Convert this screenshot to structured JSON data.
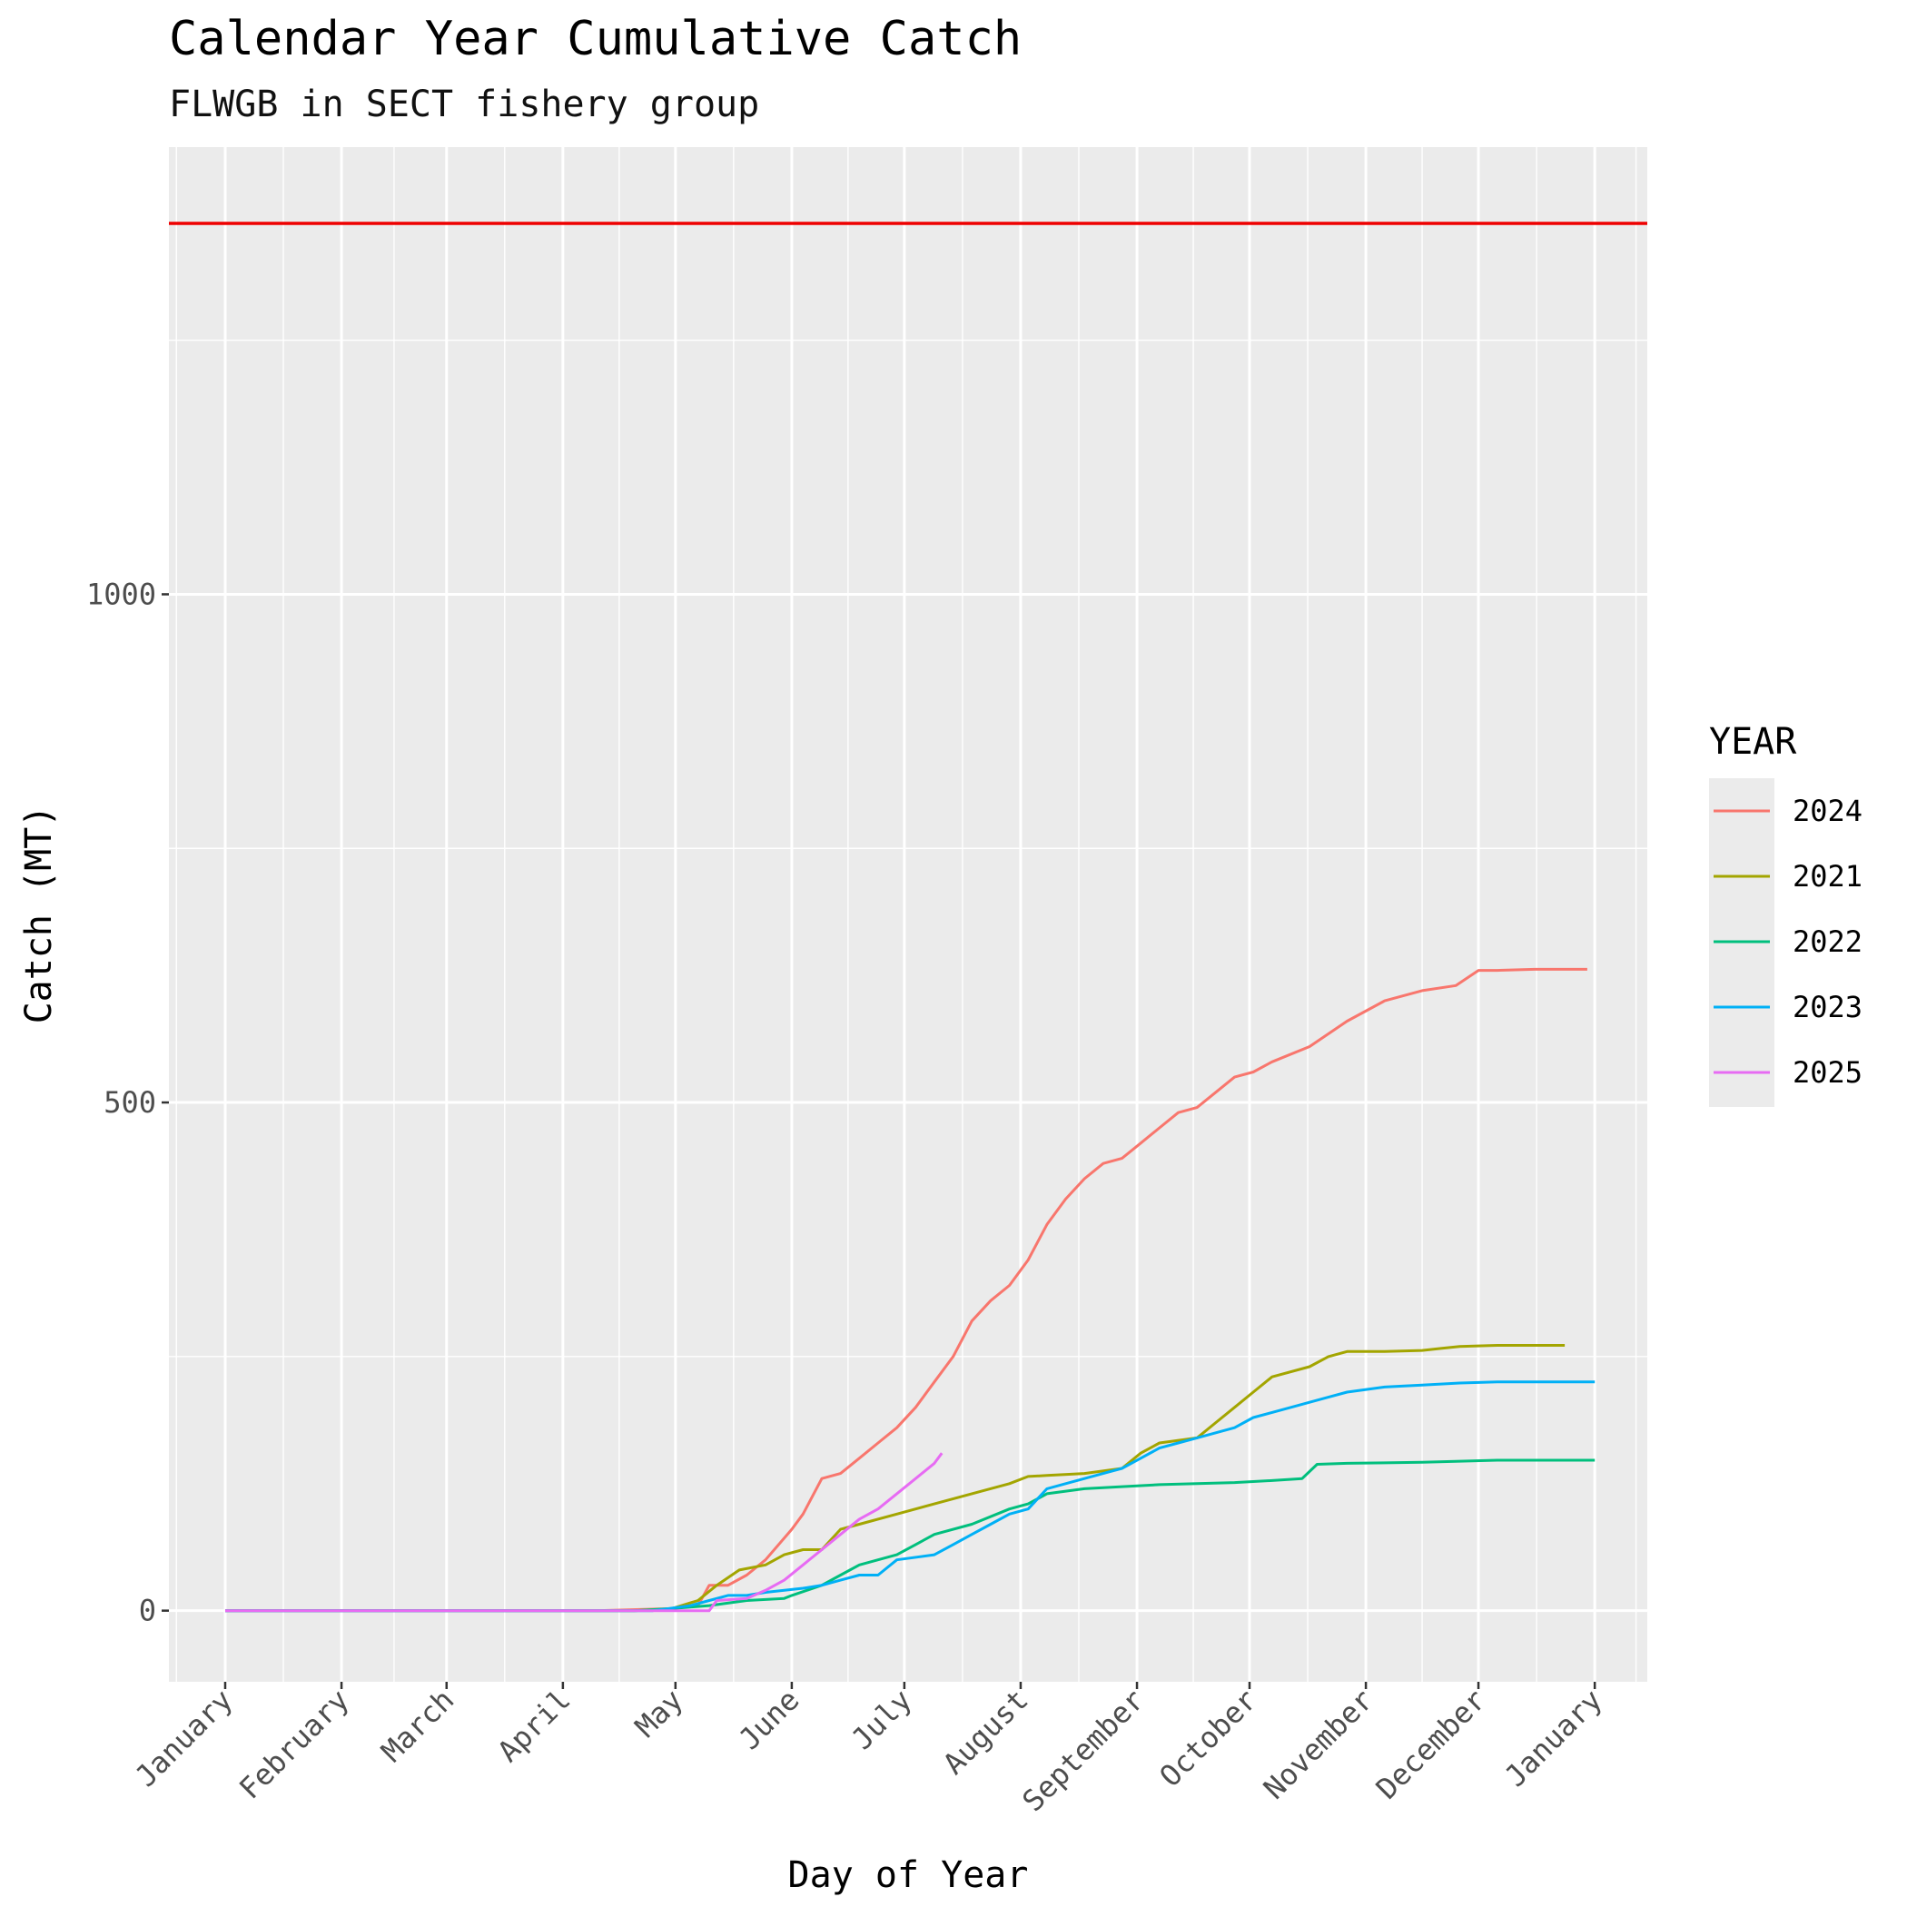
{
  "chart_data": {
    "type": "line",
    "title": "Calendar Year Cumulative Catch",
    "subtitle": "FLWGB in SECT fishery group",
    "xlabel": "Day of Year",
    "ylabel": "Catch (MT)",
    "xlim": [
      -14,
      380
    ],
    "ylim": [
      -70,
      1440
    ],
    "x_ticks": [
      {
        "label": "January",
        "day": 1
      },
      {
        "label": "February",
        "day": 32
      },
      {
        "label": "March",
        "day": 60
      },
      {
        "label": "April",
        "day": 91
      },
      {
        "label": "May",
        "day": 121
      },
      {
        "label": "June",
        "day": 152
      },
      {
        "label": "July",
        "day": 182
      },
      {
        "label": "August",
        "day": 213
      },
      {
        "label": "September",
        "day": 244
      },
      {
        "label": "October",
        "day": 274
      },
      {
        "label": "November",
        "day": 305
      },
      {
        "label": "December",
        "day": 335
      },
      {
        "label": "January",
        "day": 366
      }
    ],
    "y_ticks": [
      0,
      500,
      1000
    ],
    "y_minor_ticks": [
      250,
      750,
      1250
    ],
    "x_minor_days": [
      -12,
      16.5,
      46,
      75.5,
      106,
      136.5,
      167,
      197.5,
      228.5,
      259,
      289.5,
      320,
      350.5,
      377
    ],
    "reference_line": {
      "value": 1365,
      "color": "#ee0000"
    },
    "legend": {
      "title": "YEAR",
      "position": "right"
    },
    "series": [
      {
        "name": "2024",
        "color": "#F8766D",
        "x": [
          1,
          100,
          120,
          127,
          130,
          135,
          140,
          145,
          152,
          155,
          160,
          165,
          170,
          175,
          180,
          185,
          190,
          195,
          200,
          205,
          210,
          215,
          220,
          225,
          230,
          235,
          240,
          245,
          250,
          255,
          260,
          270,
          275,
          280,
          290,
          300,
          310,
          320,
          329,
          335,
          340,
          350,
          360,
          364
        ],
        "y": [
          0,
          0,
          2,
          5,
          25,
          25,
          35,
          50,
          80,
          95,
          130,
          135,
          150,
          165,
          180,
          200,
          225,
          250,
          285,
          305,
          320,
          345,
          380,
          405,
          425,
          440,
          445,
          460,
          475,
          490,
          495,
          525,
          530,
          540,
          555,
          580,
          600,
          610,
          615,
          630,
          630,
          631,
          631,
          631
        ]
      },
      {
        "name": "2021",
        "color": "#A3A500",
        "x": [
          1,
          110,
          120,
          127,
          132,
          138,
          145,
          150,
          155,
          160,
          165,
          170,
          180,
          190,
          200,
          210,
          215,
          220,
          230,
          240,
          245,
          250,
          260,
          265,
          270,
          275,
          280,
          290,
          295,
          300,
          310,
          320,
          325,
          330,
          340,
          350,
          358
        ],
        "y": [
          0,
          0,
          2,
          10,
          25,
          40,
          45,
          55,
          60,
          60,
          80,
          85,
          95,
          105,
          115,
          125,
          132,
          133,
          135,
          140,
          155,
          165,
          170,
          185,
          200,
          215,
          230,
          240,
          250,
          255,
          255,
          256,
          258,
          260,
          261,
          261,
          261
        ]
      },
      {
        "name": "2022",
        "color": "#00BF7D",
        "x": [
          1,
          110,
          120,
          130,
          140,
          150,
          152,
          160,
          165,
          170,
          175,
          180,
          185,
          190,
          200,
          210,
          215,
          220,
          230,
          240,
          250,
          260,
          270,
          280,
          288,
          292,
          300,
          320,
          340,
          366
        ],
        "y": [
          0,
          0,
          2,
          5,
          10,
          12,
          15,
          25,
          35,
          45,
          50,
          55,
          65,
          75,
          85,
          100,
          105,
          115,
          120,
          122,
          124,
          125,
          126,
          128,
          130,
          144,
          145,
          146,
          148,
          148
        ]
      },
      {
        "name": "2023",
        "color": "#00B0F6",
        "x": [
          1,
          115,
          125,
          130,
          135,
          140,
          145,
          150,
          155,
          160,
          165,
          170,
          175,
          180,
          190,
          195,
          200,
          205,
          210,
          215,
          220,
          225,
          230,
          235,
          240,
          245,
          250,
          255,
          260,
          265,
          270,
          275,
          280,
          285,
          290,
          295,
          300,
          310,
          320,
          330,
          340,
          350,
          366
        ],
        "y": [
          0,
          0,
          5,
          10,
          15,
          15,
          18,
          20,
          22,
          25,
          30,
          35,
          35,
          50,
          55,
          65,
          75,
          85,
          95,
          100,
          120,
          125,
          130,
          135,
          140,
          150,
          160,
          165,
          170,
          175,
          180,
          190,
          195,
          200,
          205,
          210,
          215,
          220,
          222,
          224,
          225,
          225,
          225
        ]
      },
      {
        "name": "2025",
        "color": "#E76BF3",
        "x": [
          1,
          130,
          132,
          140,
          145,
          150,
          155,
          160,
          165,
          170,
          175,
          180,
          185,
          190,
          192
        ],
        "y": [
          0,
          0,
          10,
          12,
          20,
          30,
          45,
          60,
          75,
          90,
          100,
          115,
          130,
          145,
          155
        ]
      }
    ]
  }
}
